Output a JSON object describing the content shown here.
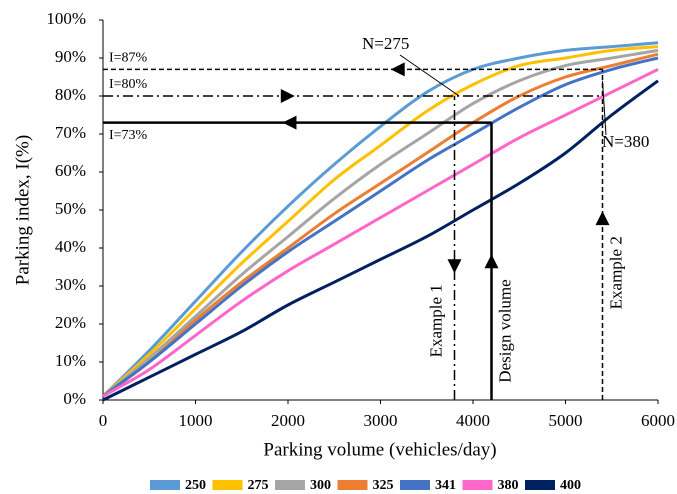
{
  "chart_data": {
    "type": "line",
    "x_label": "Parking volume (vehicles/day)",
    "y_label": "Parking index, I(%)",
    "x": [
      0,
      500,
      1000,
      1500,
      2000,
      2500,
      3000,
      3500,
      4000,
      4500,
      5000,
      5500,
      6000
    ],
    "series": [
      {
        "name": "250",
        "color": "#5b9bd5",
        "values": [
          1,
          13,
          26,
          39,
          51,
          62,
          72,
          81,
          87,
          90,
          92,
          93,
          94
        ]
      },
      {
        "name": "275",
        "color": "#ffc000",
        "values": [
          1,
          12,
          24,
          36,
          47,
          58,
          67,
          76,
          83,
          88,
          90,
          92,
          93
        ]
      },
      {
        "name": "300",
        "color": "#a5a5a5",
        "values": [
          1,
          11,
          22,
          33,
          43,
          53,
          62,
          70,
          78,
          84,
          88,
          90,
          92
        ]
      },
      {
        "name": "325",
        "color": "#ed7d31",
        "values": [
          1,
          10,
          21,
          31,
          40,
          49,
          57,
          65,
          73,
          80,
          85,
          88,
          91
        ]
      },
      {
        "name": "341",
        "color": "#4472c4",
        "values": [
          1,
          10,
          20,
          30,
          39,
          47,
          55,
          63,
          70,
          77,
          83,
          87,
          90
        ]
      },
      {
        "name": "380",
        "color": "#ff66cc",
        "values": [
          1,
          8,
          17,
          26,
          34,
          41,
          48,
          55,
          62,
          69,
          75,
          81,
          87
        ]
      },
      {
        "name": "400",
        "color": "#002060",
        "values": [
          0,
          6,
          12,
          18,
          25,
          31,
          37,
          43,
          50,
          57,
          65,
          75,
          84
        ]
      }
    ],
    "xlim": [
      0,
      6000
    ],
    "ylim": [
      0,
      100
    ],
    "xticks": [
      0,
      1000,
      2000,
      3000,
      4000,
      5000,
      6000
    ],
    "yticks": [
      {
        "value": 0,
        "label": "0%"
      },
      {
        "value": 10,
        "label": "10%"
      },
      {
        "value": 20,
        "label": "20%"
      },
      {
        "value": 30,
        "label": "30%"
      },
      {
        "value": 40,
        "label": "40%"
      },
      {
        "value": 50,
        "label": "50%"
      },
      {
        "value": 60,
        "label": "60%"
      },
      {
        "value": 70,
        "label": "70%"
      },
      {
        "value": 80,
        "label": "80%"
      },
      {
        "value": 90,
        "label": "90%"
      },
      {
        "value": {
          "value": 100,
          "label": "100%"
        }
      }
    ],
    "h_lines": [
      {
        "label": "I=87%",
        "value": 87,
        "x_end": 5400,
        "style": "dashed"
      },
      {
        "label": "I=80%",
        "value": 80,
        "x_end": 5400,
        "style": "dashdot"
      },
      {
        "label": "I=73%",
        "value": 73,
        "x_end": 4200,
        "style": "solid"
      }
    ],
    "v_lines": [
      {
        "label": "Example 1",
        "value": 3800,
        "y_end": 80,
        "style": "dashdot"
      },
      {
        "label": "Design volume",
        "value": 4200,
        "y_end": 73,
        "style": "solid"
      },
      {
        "label": "Example 2",
        "value": 5400,
        "y_end": 87,
        "style": "dashed"
      }
    ],
    "annotations": [
      "N=275",
      "N=380"
    ],
    "legend": "bottom"
  }
}
